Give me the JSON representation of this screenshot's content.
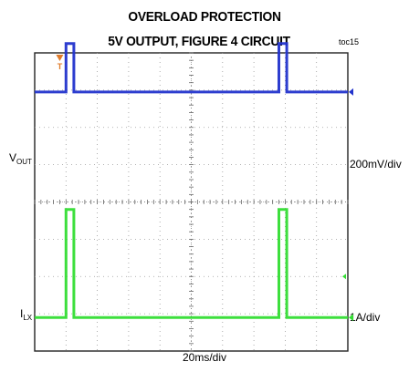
{
  "chart_data": {
    "type": "line",
    "title": "OVERLOAD PROTECTION",
    "subtitle": "5V OUTPUT, FIGURE 4 CIRCUIT",
    "tag": "toc15",
    "xlabel": "20ms/div",
    "divisions": {
      "x": 10,
      "y": 8
    },
    "trigger_marker": {
      "label": "T",
      "color": "#e07b2a",
      "x_div": 0.8
    },
    "grid": true,
    "series": [
      {
        "name": "V_OUT",
        "label_main": "V",
        "label_sub": "OUT",
        "scale": "200mV/div",
        "color": "#2233cc",
        "baseline_div": 6.95,
        "pulse_height_div": 1.3,
        "pulses": [
          [
            1.0,
            1.25
          ],
          [
            7.8,
            8.05
          ]
        ],
        "x_div": [
          0,
          1.0,
          1.0,
          1.25,
          1.25,
          7.8,
          7.8,
          8.05,
          8.05,
          10
        ],
        "y_div": [
          6.95,
          6.95,
          8.25,
          8.25,
          6.95,
          6.95,
          8.25,
          8.25,
          6.95,
          6.95
        ]
      },
      {
        "name": "I_LX",
        "label_main": "I",
        "label_sub": "LX",
        "scale": "1A/div",
        "color": "#33dd33",
        "baseline_div": 0.9,
        "pulse_height_div": 2.9,
        "pulses": [
          [
            1.0,
            1.25
          ],
          [
            7.8,
            8.05
          ]
        ],
        "x_div": [
          0,
          1.0,
          1.0,
          1.25,
          1.25,
          7.8,
          7.8,
          8.05,
          8.05,
          10
        ],
        "y_div": [
          0.9,
          0.9,
          3.8,
          3.8,
          0.9,
          0.9,
          3.8,
          3.8,
          0.9,
          0.9
        ]
      }
    ]
  }
}
